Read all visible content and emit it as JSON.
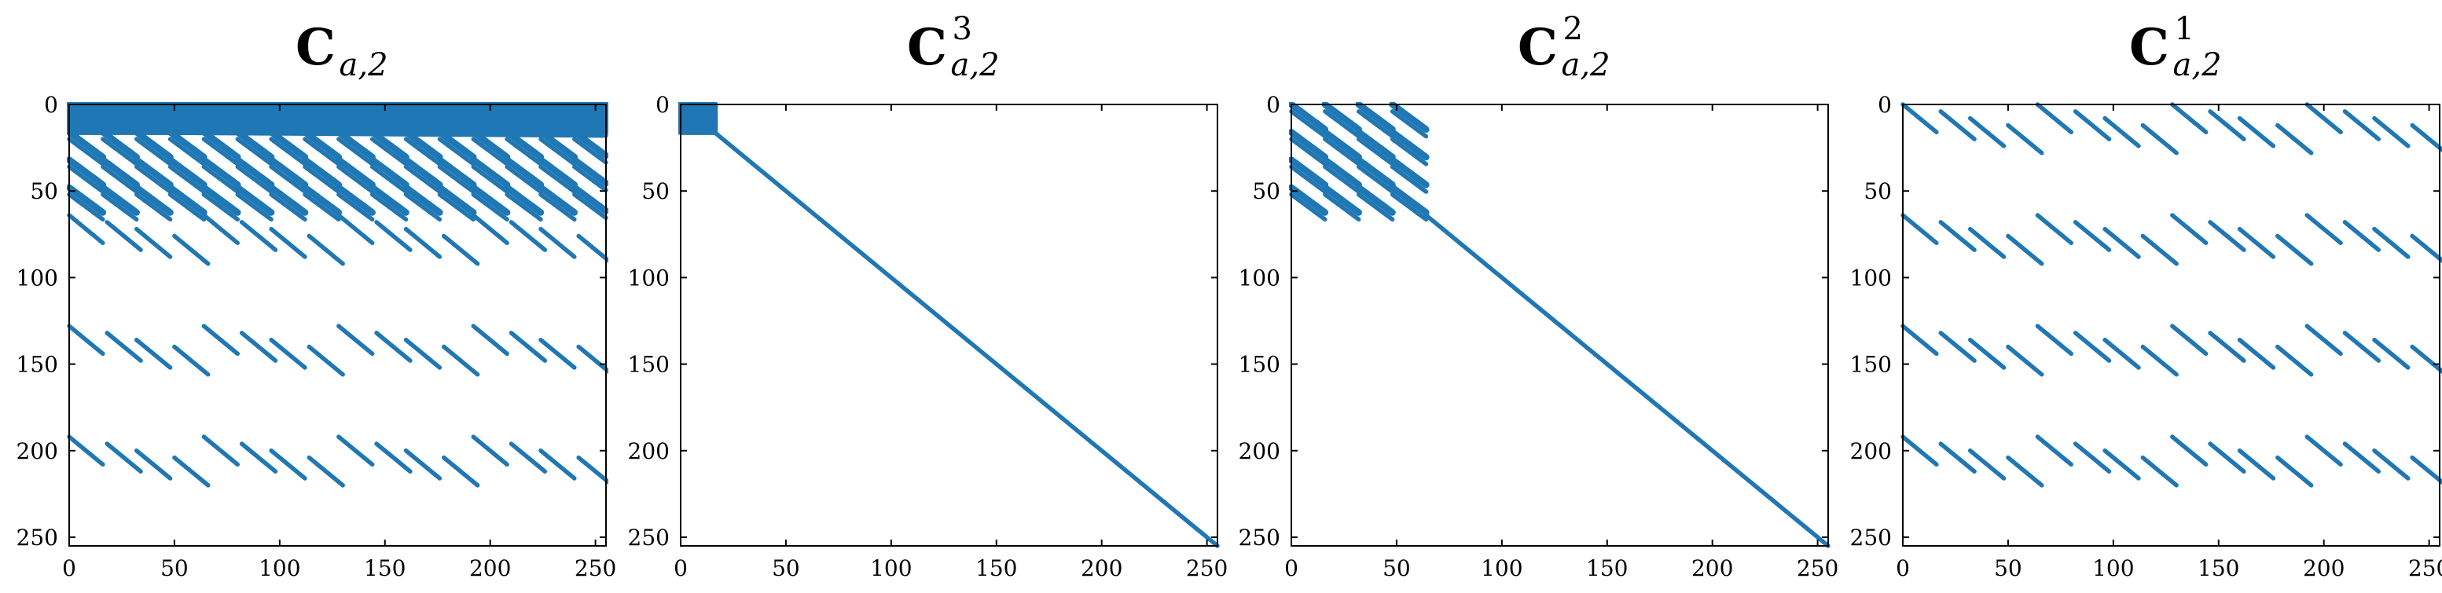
{
  "chart_data": [
    {
      "type": "scatter",
      "subtype": "sparsity-pattern",
      "title": {
        "base": "C",
        "subscript": "a,2",
        "superscript": ""
      },
      "xlim": [
        0,
        255
      ],
      "ylim": [
        255,
        0
      ],
      "xticks": [
        0,
        50,
        100,
        150,
        200,
        250
      ],
      "yticks": [
        0,
        50,
        100,
        150,
        200,
        250
      ],
      "grid": false,
      "color": "#1f77b4",
      "pattern": {
        "dense_block": {
          "x": [
            0,
            255
          ],
          "y": [
            0,
            16
          ]
        },
        "wave_bands": {
          "rows_start": [
            16,
            32,
            48
          ],
          "height": 16,
          "x": [
            0,
            255
          ]
        },
        "diagonal_stripes": {
          "block_starts": [
            64,
            128,
            192
          ],
          "period": 64,
          "x": [
            0,
            255
          ]
        }
      }
    },
    {
      "type": "scatter",
      "subtype": "sparsity-pattern",
      "title": {
        "base": "C",
        "subscript": "a,2",
        "superscript": "3"
      },
      "xlim": [
        0,
        255
      ],
      "ylim": [
        255,
        0
      ],
      "xticks": [
        0,
        50,
        100,
        150,
        200,
        250
      ],
      "yticks": [
        0,
        50,
        100,
        150,
        200,
        250
      ],
      "grid": false,
      "color": "#1f77b4",
      "pattern": {
        "dense_block": {
          "x": [
            0,
            16
          ],
          "y": [
            0,
            16
          ]
        },
        "diagonal": {
          "from": [
            16,
            16
          ],
          "to": [
            255,
            255
          ]
        }
      }
    },
    {
      "type": "scatter",
      "subtype": "sparsity-pattern",
      "title": {
        "base": "C",
        "subscript": "a,2",
        "superscript": "2"
      },
      "xlim": [
        0,
        255
      ],
      "ylim": [
        255,
        0
      ],
      "xticks": [
        0,
        50,
        100,
        150,
        200,
        250
      ],
      "yticks": [
        0,
        50,
        100,
        150,
        200,
        250
      ],
      "grid": false,
      "color": "#1f77b4",
      "pattern": {
        "wave_bands": {
          "rows_start": [
            0,
            16,
            32,
            48
          ],
          "height": 16,
          "x": [
            0,
            64
          ]
        },
        "diagonal": {
          "from": [
            64,
            64
          ],
          "to": [
            255,
            255
          ]
        }
      }
    },
    {
      "type": "scatter",
      "subtype": "sparsity-pattern",
      "title": {
        "base": "C",
        "subscript": "a,2",
        "superscript": "1"
      },
      "xlim": [
        0,
        255
      ],
      "ylim": [
        255,
        0
      ],
      "xticks": [
        0,
        50,
        100,
        150,
        200,
        250
      ],
      "yticks": [
        0,
        50,
        100,
        150,
        200,
        250
      ],
      "grid": false,
      "color": "#1f77b4",
      "pattern": {
        "diagonal_stripes": {
          "block_starts": [
            0,
            64,
            128,
            192
          ],
          "period": 64,
          "x": [
            0,
            255
          ]
        }
      }
    }
  ]
}
